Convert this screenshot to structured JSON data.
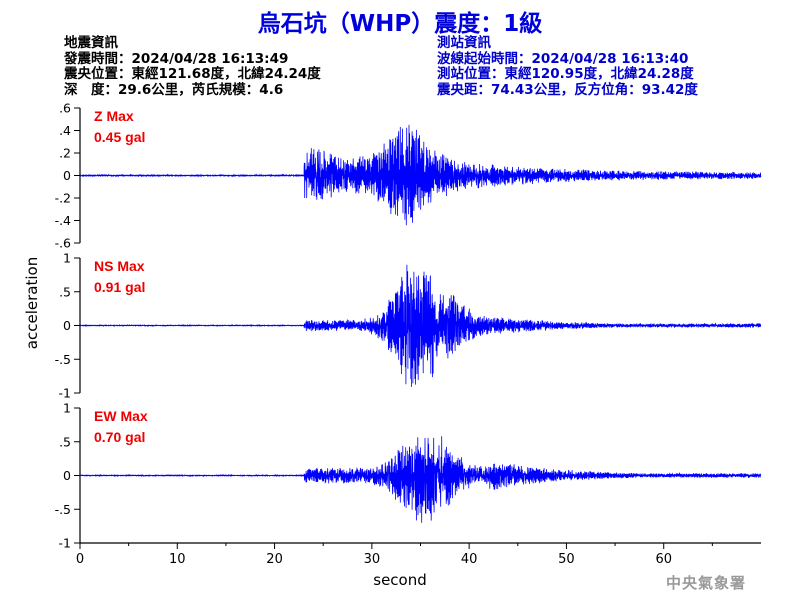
{
  "title": "烏石坑（WHP）震度：1級",
  "event_info": {
    "heading": "地震資訊",
    "origin_time": "發震時間：2024/04/28 16:13:49",
    "epicenter": "震央位置：東經121.68度，北緯24.24度",
    "depth_magnitude": "深　度：29.6公里，芮氏規模：4.6"
  },
  "station_info": {
    "heading": "測站資訊",
    "onset_time": "波線起始時間：2024/04/28 16:13:40",
    "location": "測站位置：東經120.95度，北緯24.28度",
    "distance_azimuth": "震央距：74.43公里，反方位角：93.42度"
  },
  "watermark": "中央氣象署",
  "colors": {
    "title": "#0000dd",
    "trace": "#0000ff",
    "max_label": "#ee0000",
    "station_info": "#0000cc"
  },
  "chart_data": {
    "type": "line",
    "xlabel": "second",
    "ylabel": "acceleration",
    "xlim": [
      0,
      70
    ],
    "xticks": [
      0,
      10,
      20,
      30,
      40,
      50,
      60
    ],
    "onset_seconds": 23,
    "panels": [
      {
        "component": "Z",
        "label": "Z Max",
        "max_text": "0.45 gal",
        "peak": 0.45,
        "ylim": [
          -0.6,
          0.6
        ],
        "yticks": [
          0.6,
          0.4,
          0.2,
          0,
          -0.2,
          -0.4,
          -0.6
        ]
      },
      {
        "component": "NS",
        "label": "NS Max",
        "max_text": "0.91 gal",
        "peak": 0.91,
        "ylim": [
          -1,
          1
        ],
        "yticks": [
          1,
          0.5,
          0,
          -0.5,
          -1
        ]
      },
      {
        "component": "EW",
        "label": "EW Max",
        "max_text": "0.70 gal",
        "peak": 0.7,
        "ylim": [
          -1,
          1
        ],
        "yticks": [
          1,
          0.5,
          0,
          -0.5,
          -1
        ]
      }
    ]
  }
}
